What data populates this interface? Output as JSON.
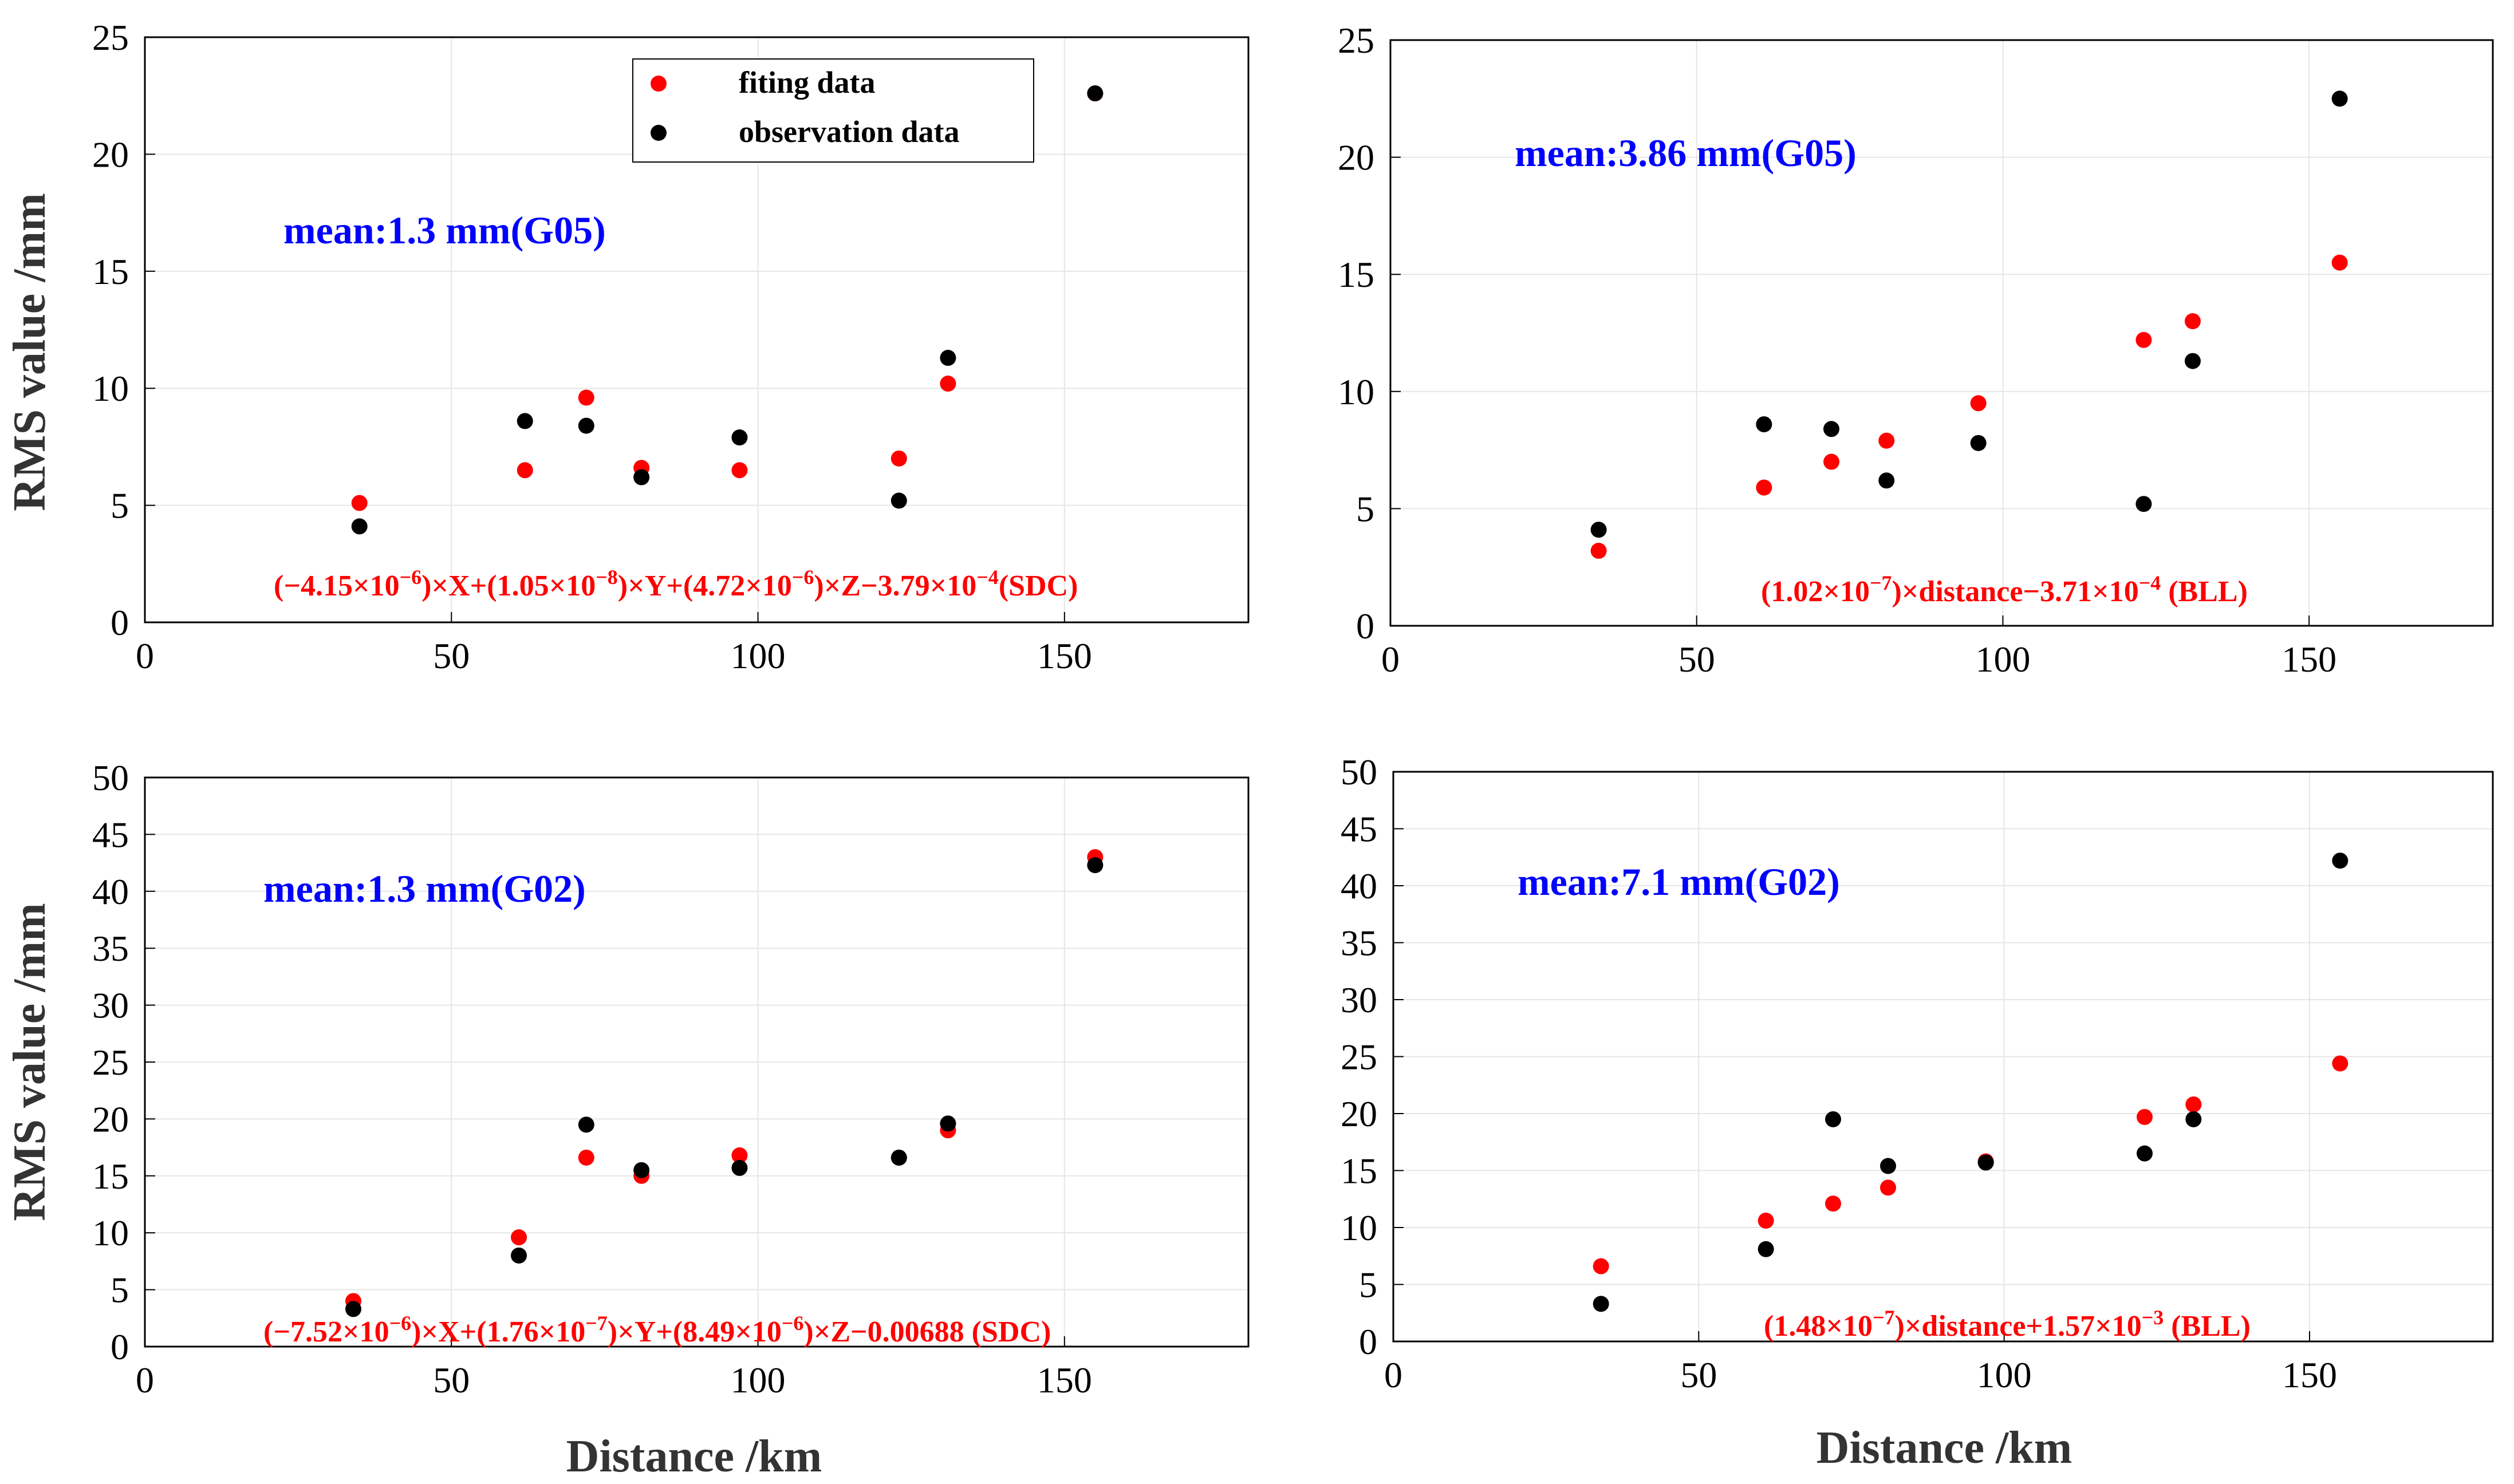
{
  "colors": {
    "fitting": "#ff0000",
    "observation": "#000000",
    "mean_text": "#0000ff",
    "equation_text": "#ff0000",
    "grid": "#e6e6e6"
  },
  "legend": {
    "fitting_label": "fiting data",
    "observation_label": "observation data"
  },
  "chart_data": [
    {
      "type": "scatter",
      "panel": "top-left",
      "ylabel": "RMS value /mm",
      "xlabel": "",
      "xlim": [
        0,
        180
      ],
      "ylim": [
        0,
        25
      ],
      "xticks": [
        0,
        50,
        100,
        150
      ],
      "yticks": [
        0,
        5,
        10,
        15,
        20,
        25
      ],
      "grid": true,
      "legend_position": "top-center",
      "annotation": "mean:1.3 mm(G05)",
      "equation": {
        "c1": "−4.15",
        "e1": "−6",
        "v1": "X",
        "c2": "1.05",
        "e2": "−8",
        "v2": "Y",
        "c3": "4.72",
        "e3": "−6",
        "v3": "Z",
        "c4": "3.79",
        "e4": "−4",
        "tag": "(SDC)"
      },
      "series": [
        {
          "name": "fiting data",
          "x": [
            35,
            62,
            72,
            81,
            97,
            123,
            131,
            155
          ],
          "y": [
            5.1,
            6.5,
            9.6,
            6.6,
            6.5,
            7.0,
            10.2,
            22.6
          ]
        },
        {
          "name": "observation data",
          "x": [
            35,
            62,
            72,
            81,
            97,
            123,
            131,
            155
          ],
          "y": [
            4.1,
            8.6,
            8.4,
            6.2,
            7.9,
            5.2,
            11.3,
            22.6
          ]
        }
      ]
    },
    {
      "type": "scatter",
      "panel": "top-right",
      "ylabel": "",
      "xlabel": "",
      "xlim": [
        0,
        180
      ],
      "ylim": [
        0,
        25
      ],
      "xticks": [
        0,
        50,
        100,
        150
      ],
      "yticks": [
        0,
        5,
        10,
        15,
        20,
        25
      ],
      "grid": true,
      "annotation": "mean:3.86 mm(G05)",
      "equation": {
        "c1": "1.02",
        "e1": "−7",
        "c2": "3.71",
        "e2": "−4",
        "tag": "(BLL)"
      },
      "series": [
        {
          "name": "fiting data",
          "x": [
            34,
            61,
            72,
            81,
            96,
            123,
            131,
            155
          ],
          "y": [
            3.2,
            5.9,
            7.0,
            7.9,
            9.5,
            12.2,
            13.0,
            15.5
          ]
        },
        {
          "name": "observation data",
          "x": [
            34,
            61,
            72,
            81,
            96,
            123,
            131,
            155
          ],
          "y": [
            4.1,
            8.6,
            8.4,
            6.2,
            7.8,
            5.2,
            11.3,
            22.5
          ]
        }
      ]
    },
    {
      "type": "scatter",
      "panel": "bottom-left",
      "ylabel": "RMS value /mm",
      "xlabel": "Distance /km",
      "xlim": [
        0,
        180
      ],
      "ylim": [
        0,
        50
      ],
      "xticks": [
        0,
        50,
        100,
        150
      ],
      "yticks": [
        0,
        5,
        10,
        15,
        20,
        25,
        30,
        35,
        40,
        45,
        50
      ],
      "grid": true,
      "annotation": "mean:1.3 mm(G02)",
      "equation": {
        "c1": "−7.52",
        "e1": "−6",
        "v1": "X",
        "c2": "1.76",
        "e2": "−7",
        "v2": "Y",
        "c3": "8.49",
        "e3": "−6",
        "v3": "Z",
        "c4": "0.00688",
        "tag": "(SDC)"
      },
      "series": [
        {
          "name": "fiting data",
          "x": [
            34,
            61,
            72,
            81,
            97,
            123,
            131,
            155
          ],
          "y": [
            4.0,
            9.6,
            16.6,
            15.0,
            16.8,
            16.6,
            19.0,
            43.0
          ]
        },
        {
          "name": "observation data",
          "x": [
            34,
            61,
            72,
            81,
            97,
            123,
            131,
            155
          ],
          "y": [
            3.3,
            8.0,
            19.5,
            15.5,
            15.7,
            16.6,
            19.6,
            42.3
          ]
        }
      ]
    },
    {
      "type": "scatter",
      "panel": "bottom-right",
      "ylabel": "",
      "xlabel": "Distance /km",
      "xlim": [
        0,
        180
      ],
      "ylim": [
        0,
        50
      ],
      "xticks": [
        0,
        50,
        100,
        150
      ],
      "yticks": [
        0,
        5,
        10,
        15,
        20,
        25,
        30,
        35,
        40,
        45,
        50
      ],
      "grid": true,
      "annotation": "mean:7.1 mm(G02)",
      "equation": {
        "c1": "1.48",
        "e1": "−7",
        "c2": "1.57",
        "e2": "−3",
        "tag": "(BLL)"
      },
      "series": [
        {
          "name": "fiting data",
          "x": [
            34,
            61,
            72,
            81,
            97,
            123,
            131,
            155
          ],
          "y": [
            6.6,
            10.6,
            12.1,
            13.5,
            15.8,
            19.7,
            20.8,
            24.4
          ]
        },
        {
          "name": "observation data",
          "x": [
            34,
            61,
            72,
            81,
            97,
            123,
            131,
            155
          ],
          "y": [
            3.3,
            8.1,
            19.5,
            15.4,
            15.7,
            16.5,
            19.5,
            42.2
          ]
        }
      ]
    }
  ]
}
